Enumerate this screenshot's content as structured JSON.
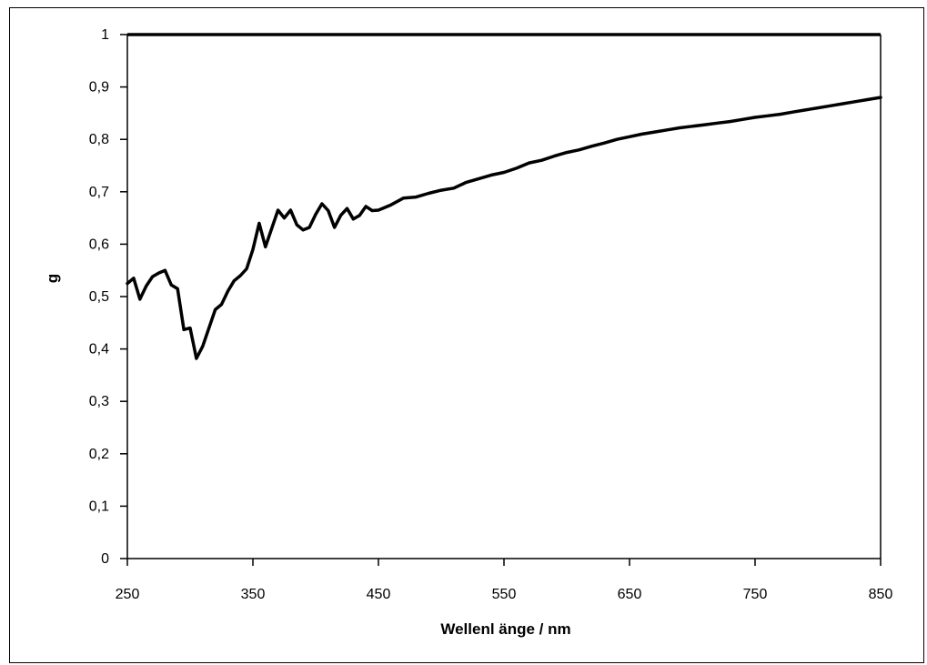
{
  "chart_data": {
    "type": "line",
    "title": "",
    "xlabel": "Wellenl änge / nm",
    "ylabel": "g",
    "xlim": [
      250,
      850
    ],
    "ylim": [
      0,
      1
    ],
    "x_ticks": [
      250,
      350,
      450,
      550,
      650,
      750,
      850
    ],
    "x_tick_labels": [
      "250",
      "350",
      "450",
      "550",
      "650",
      "750",
      "850"
    ],
    "y_ticks": [
      0,
      0.1,
      0.2,
      0.3,
      0.4,
      0.5,
      0.6,
      0.7,
      0.8,
      0.9,
      1
    ],
    "y_tick_labels": [
      "0",
      "0,1",
      "0,2",
      "0,3",
      "0,4",
      "0,5",
      "0,6",
      "0,7",
      "0,8",
      "0,9",
      "1"
    ],
    "grid": false,
    "legend": "none",
    "line_color": "#000000",
    "series": [
      {
        "x": [
          250,
          255,
          260,
          265,
          270,
          275,
          280,
          285,
          290,
          295,
          300,
          305,
          310,
          315,
          320,
          325,
          330,
          335,
          340,
          345,
          350,
          355,
          360,
          365,
          370,
          375,
          380,
          385,
          390,
          395,
          400,
          405,
          410,
          415,
          420,
          425,
          430,
          435,
          440,
          445,
          450,
          460,
          470,
          480,
          490,
          500,
          510,
          520,
          530,
          540,
          550,
          560,
          570,
          580,
          590,
          600,
          610,
          620,
          630,
          640,
          650,
          660,
          670,
          680,
          690,
          700,
          710,
          720,
          730,
          740,
          750,
          760,
          770,
          780,
          790,
          800,
          810,
          820,
          830,
          840,
          850
        ],
        "values": [
          0.525,
          0.535,
          0.495,
          0.52,
          0.538,
          0.545,
          0.55,
          0.522,
          0.515,
          0.437,
          0.44,
          0.382,
          0.405,
          0.44,
          0.475,
          0.485,
          0.51,
          0.53,
          0.54,
          0.553,
          0.59,
          0.64,
          0.595,
          0.63,
          0.665,
          0.65,
          0.665,
          0.637,
          0.627,
          0.632,
          0.657,
          0.677,
          0.664,
          0.632,
          0.655,
          0.668,
          0.648,
          0.655,
          0.672,
          0.664,
          0.665,
          0.675,
          0.688,
          0.69,
          0.697,
          0.703,
          0.707,
          0.718,
          0.725,
          0.732,
          0.737,
          0.745,
          0.755,
          0.76,
          0.768,
          0.775,
          0.78,
          0.787,
          0.793,
          0.8,
          0.805,
          0.81,
          0.814,
          0.818,
          0.822,
          0.825,
          0.828,
          0.831,
          0.834,
          0.838,
          0.842,
          0.845,
          0.848,
          0.852,
          0.856,
          0.86,
          0.864,
          0.868,
          0.872,
          0.876,
          0.88
        ]
      }
    ]
  }
}
